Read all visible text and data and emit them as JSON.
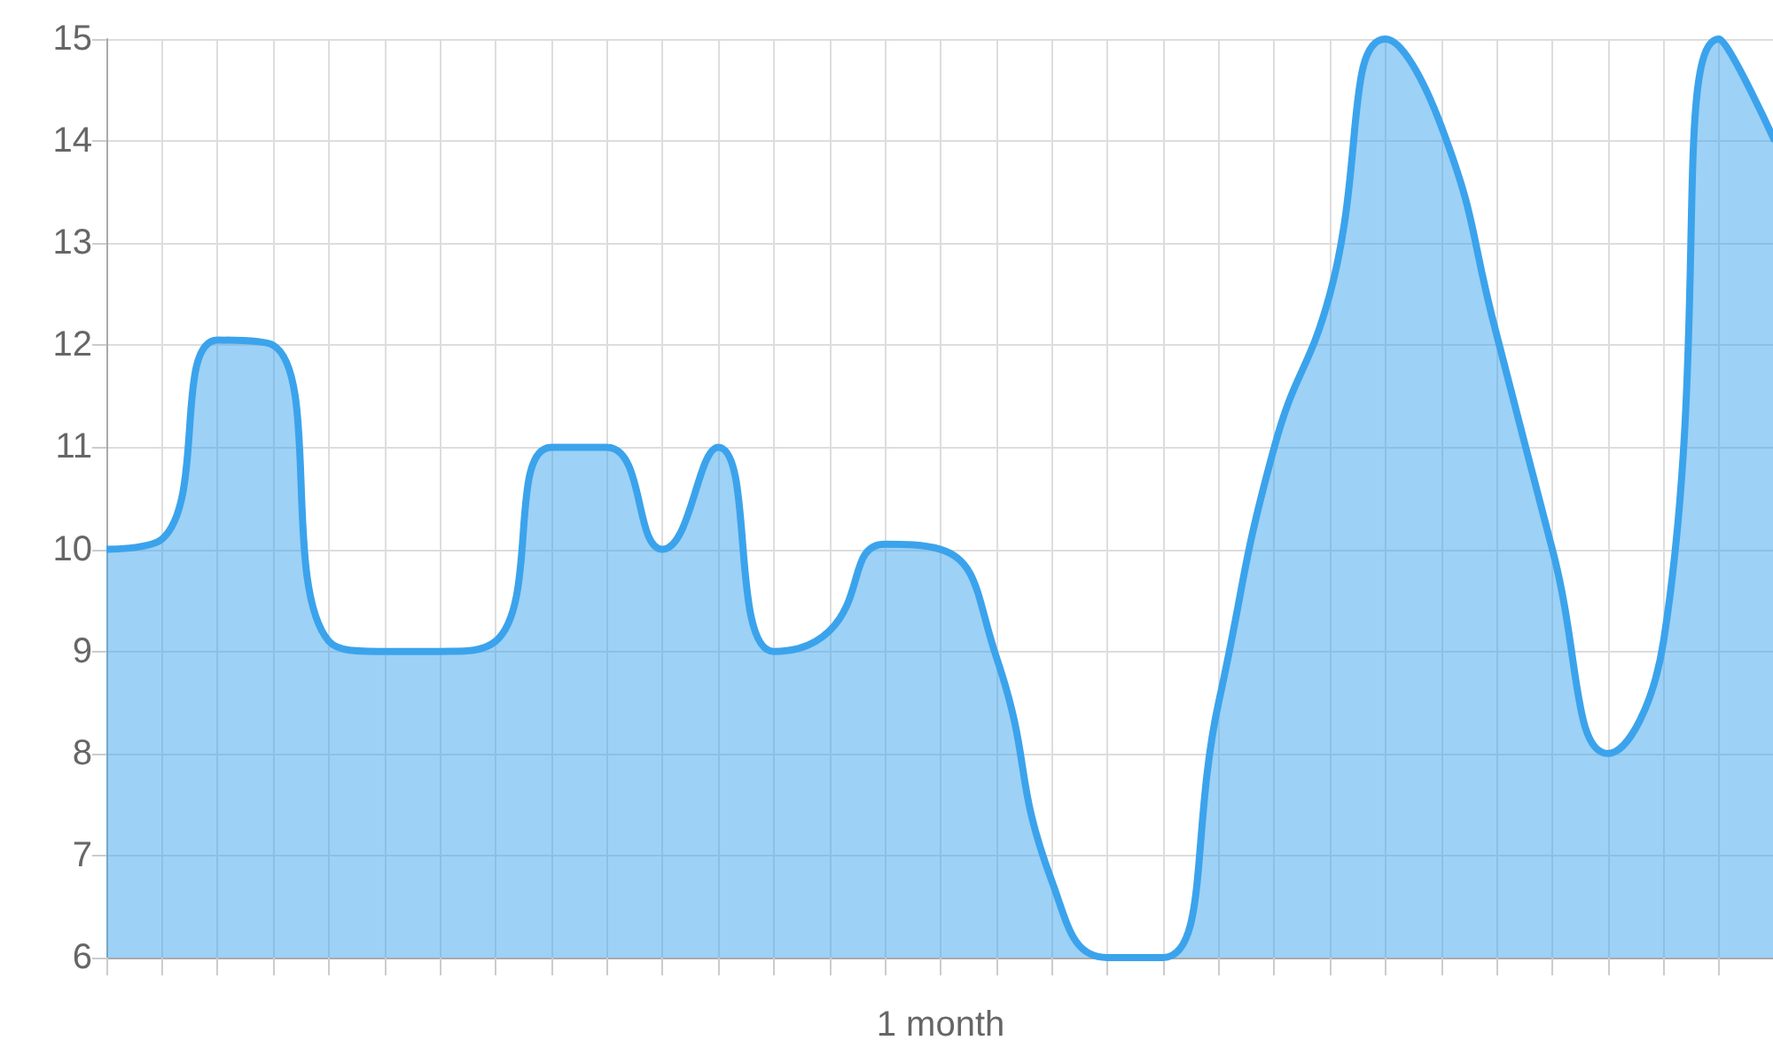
{
  "chart_data": {
    "type": "area",
    "xlabel": "1 month",
    "categories": [
      null,
      null,
      null,
      null,
      null,
      null,
      null,
      null,
      null,
      null,
      null,
      null,
      null,
      null,
      null,
      null,
      null,
      null,
      null,
      null,
      null,
      null,
      null,
      null,
      null,
      null,
      null,
      null,
      null,
      null,
      null
    ],
    "series": [
      {
        "color": "#3ba3ec",
        "values": [
          10,
          10.1,
          12.05,
          12,
          9.1,
          9,
          9,
          9.1,
          11,
          11,
          10,
          11,
          9,
          9.2,
          10.05,
          10,
          8.95,
          6.75,
          6,
          6,
          8.5,
          11,
          12.5,
          15,
          14.15,
          12.1,
          10,
          8,
          9.1,
          15,
          14
        ]
      }
    ],
    "ylim": [
      6,
      15
    ],
    "yticks": [
      6,
      7,
      8,
      9,
      10,
      11,
      12,
      13,
      14,
      15
    ],
    "grid": true,
    "marker": "none",
    "line_style": "solid"
  }
}
